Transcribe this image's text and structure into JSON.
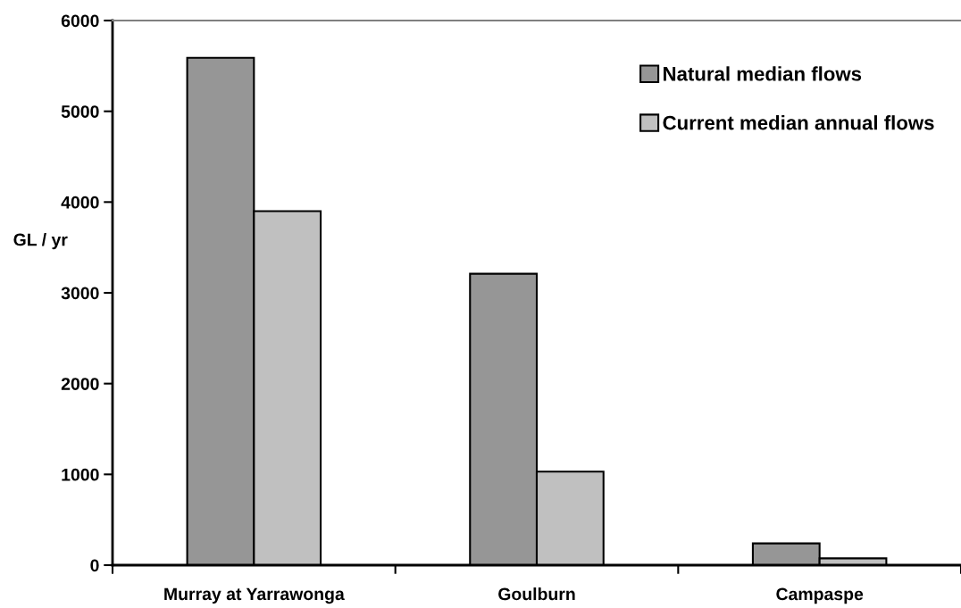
{
  "chart_data": {
    "type": "bar",
    "ylabel": "GL / yr",
    "categories": [
      "Murray at Yarrawonga",
      "Goulburn",
      "Campaspe"
    ],
    "series": [
      {
        "name": "Natural median flows",
        "color": "#969696",
        "values": [
          5590,
          3210,
          240
        ]
      },
      {
        "name": "Current median annual flows",
        "color": "#c0c0c0",
        "values": [
          3900,
          1030,
          75
        ]
      }
    ],
    "ylim": [
      0,
      6000
    ],
    "yticks": [
      0,
      1000,
      2000,
      3000,
      4000,
      5000,
      6000
    ],
    "grid": false,
    "legend": "top right"
  }
}
